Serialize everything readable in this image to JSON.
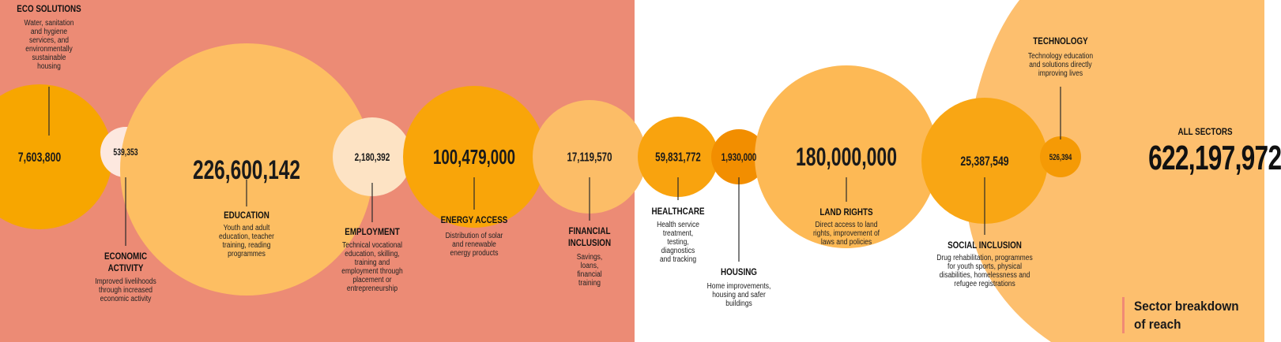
{
  "chart_data": {
    "type": "bubble",
    "title": "Sector breakdown of reach",
    "total": {
      "label": "ALL SECTORS",
      "value": "622,197,972"
    },
    "sectors": [
      {
        "label": "ECO SOLUTIONS",
        "value": 7603800,
        "display": "7,603,800",
        "description": "Water, sanitation\nand hygiene\nservices, and\nenvironmentally\nsustainable\nhousing",
        "color": "#f7a600"
      },
      {
        "label": "ECONOMIC\nACTIVITY",
        "value": 539353,
        "display": "539,353",
        "description": "Improved livelihoods\nthrough increased\neconomic activity",
        "color": "#fde8df"
      },
      {
        "label": "EDUCATION",
        "value": 226600142,
        "display": "226,600,142",
        "description": "Youth and adult\neducation, teacher\ntraining, reading\nprogrammes",
        "color": "#fdbe62"
      },
      {
        "label": "EMPLOYMENT",
        "value": 2180392,
        "display": "2,180,392",
        "description": "Technical vocational\neducation, skilling,\ntraining and\nemployment through\nplacement or\nentrepreneurship",
        "color": "#fde3c4"
      },
      {
        "label": "ENERGY ACCESS",
        "value": 100479000,
        "display": "100,479,000",
        "description": "Distribution of solar\nand renewable\nenergy products",
        "color": "#f9a509"
      },
      {
        "label": "FINANCIAL\nINCLUSION",
        "value": 17119570,
        "display": "17,119,570",
        "description": "Savings,\nloans,\nfinancial\ntraining",
        "color": "#fcbd67"
      },
      {
        "label": "HEALTHCARE",
        "value": 59831772,
        "display": "59,831,772",
        "description": "Health service\ntreatment,\ntesting,\ndiagnostics\nand tracking",
        "color": "#f9a30e"
      },
      {
        "label": "HOUSING",
        "value": 1930000,
        "display": "1,930,000",
        "description": "Home improvements,\nhousing and safer\nbuildings",
        "color": "#f28e00"
      },
      {
        "label": "LAND RIGHTS",
        "value": 180000000,
        "display": "180,000,000",
        "description": "Direct access to land\nrights, improvement of\nlaws and policies",
        "color": "#fdb955"
      },
      {
        "label": "SOCIAL INCLUSION",
        "value": 25387549,
        "display": "25,387,549",
        "description": "Drug rehabilitation, programmes\nfor youth sports, physical\ndisabilities, homelessness and\nrefugee registrations",
        "color": "#f9a614"
      },
      {
        "label": "TECHNOLOGY",
        "value": 526394,
        "display": "526,394",
        "description": "Technology education\nand solutions directly\nimproving lives",
        "color": "#f59a05"
      }
    ]
  },
  "colors": {
    "panel_left": "#ec8b75",
    "panel_right_blob": "#fdbf6e",
    "accent_bar": "#f08a75"
  }
}
